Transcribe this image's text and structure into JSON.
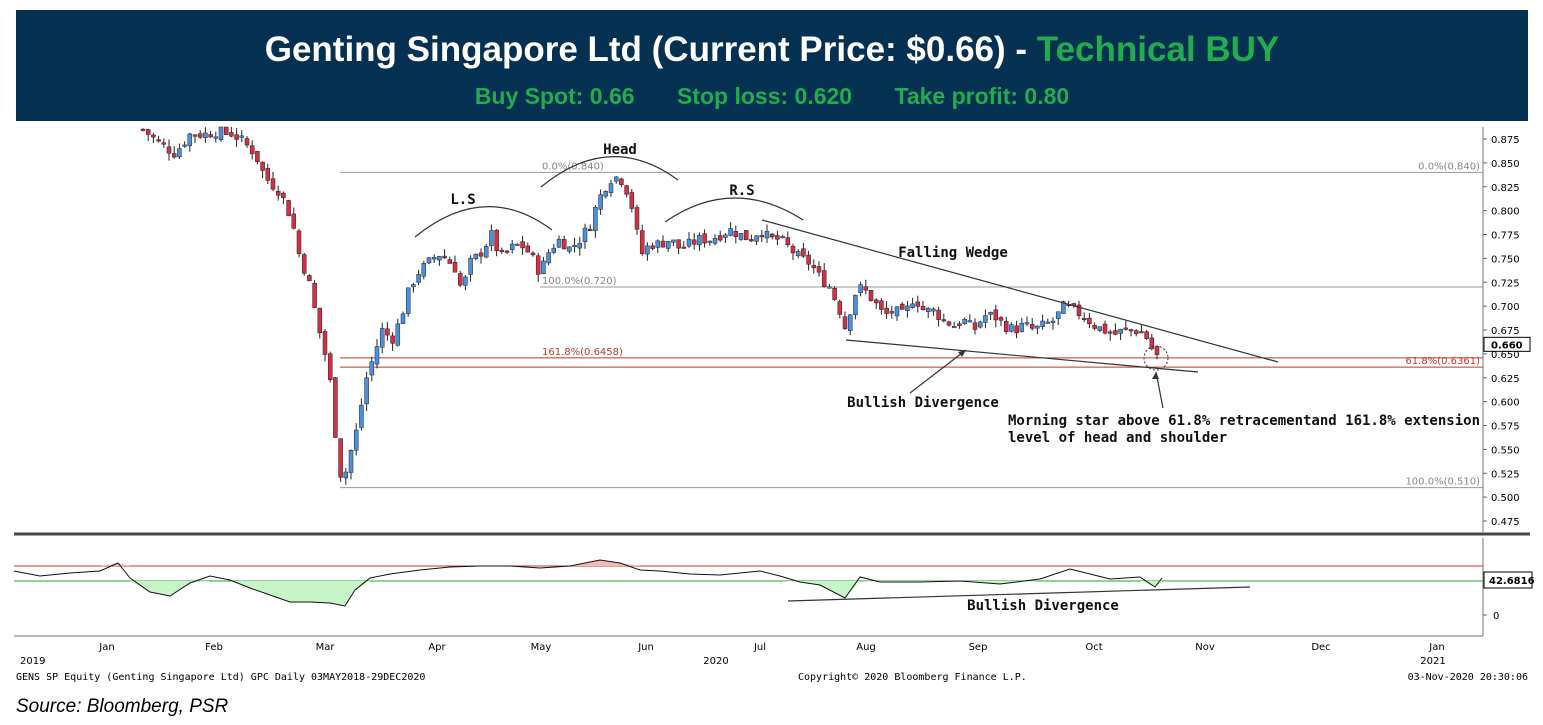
{
  "header": {
    "title_main": "Genting Singapore Ltd (Current Price: $0.66) - ",
    "title_signal": "Technical BUY",
    "buy_spot": "Buy Spot: 0.66",
    "stop_loss": "Stop loss: 0.620",
    "take_profit": "Take profit: 0.80"
  },
  "source": "Source: Bloomberg, PSR",
  "footer": {
    "left": "GENS SP Equity (Genting Singapore Ltd) GPC  Daily 03MAY2018-29DEC2020",
    "center": "Copyright© 2020 Bloomberg Finance L.P.",
    "right": "03-Nov-2020 20:30:06"
  },
  "colors": {
    "banner": "#043051",
    "buy_green": "#1fad4e",
    "up_candle": "#4a90e2",
    "down_candle": "#d32f45",
    "rsi_fill": "#c8f5c8",
    "rsi_over": "#f5b8b8"
  },
  "chart_data": {
    "type": "candlestick",
    "price_axis": {
      "min": 0.475,
      "max": 0.875,
      "ticks": [
        "0.875",
        "0.850",
        "0.825",
        "0.800",
        "0.775",
        "0.750",
        "0.725",
        "0.700",
        "0.675",
        "0.650",
        "0.625",
        "0.600",
        "0.575",
        "0.550",
        "0.525",
        "0.500",
        "0.475"
      ]
    },
    "current_price_label": "0.660",
    "rsi_axis": {
      "labels": [
        "42.6816",
        "0"
      ],
      "upper_band": 70,
      "lower_band": 30
    },
    "x_months": [
      "Jan",
      "Feb",
      "Mar",
      "Apr",
      "May",
      "Jun",
      "Jul",
      "Aug",
      "Sep",
      "Oct",
      "Nov",
      "Dec",
      "Jan"
    ],
    "x_years": [
      "2019",
      "2020",
      "2021"
    ],
    "levels": [
      {
        "label_left": "0.0%(0.840)",
        "label_right": "0.0%(0.840)",
        "value": 0.84,
        "color": "#999999"
      },
      {
        "label_left": "100.0%(0.720)",
        "value": 0.72,
        "color": "#999999"
      },
      {
        "label_left": "161.8%(0.6458)",
        "value": 0.6458,
        "color": "#c0392b"
      },
      {
        "label_right": "61.8%(0.6361)",
        "value": 0.6361,
        "color": "#c0392b"
      },
      {
        "label_right": "100.0%(0.510)",
        "value": 0.51,
        "color": "#999999"
      }
    ],
    "annotations": {
      "head": "Head",
      "left_shoulder": "L.S",
      "right_shoulder": "R.S",
      "falling_wedge": "Falling Wedge",
      "bullish_divergence": "Bullish Divergence",
      "morning_star_line1": "Morning star above 61.8% retracementand 161.8% extension",
      "morning_star_line2": "level of head and shoulder",
      "rsi_divergence": "Bullish Divergence"
    },
    "path": [
      [
        143,
        0.885
      ],
      [
        160,
        0.87
      ],
      [
        175,
        0.86
      ],
      [
        190,
        0.88
      ],
      [
        205,
        0.88
      ],
      [
        225,
        0.885
      ],
      [
        240,
        0.875
      ],
      [
        255,
        0.86
      ],
      [
        265,
        0.835
      ],
      [
        280,
        0.82
      ],
      [
        292,
        0.79
      ],
      [
        300,
        0.75
      ],
      [
        308,
        0.73
      ],
      [
        318,
        0.68
      ],
      [
        325,
        0.65
      ],
      [
        332,
        0.61
      ],
      [
        338,
        0.535
      ],
      [
        343,
        0.515
      ],
      [
        350,
        0.545
      ],
      [
        358,
        0.575
      ],
      [
        365,
        0.62
      ],
      [
        373,
        0.645
      ],
      [
        382,
        0.675
      ],
      [
        392,
        0.665
      ],
      [
        400,
        0.685
      ],
      [
        410,
        0.72
      ],
      [
        418,
        0.735
      ],
      [
        428,
        0.745
      ],
      [
        438,
        0.755
      ],
      [
        446,
        0.75
      ],
      [
        455,
        0.74
      ],
      [
        462,
        0.715
      ],
      [
        470,
        0.745
      ],
      [
        480,
        0.755
      ],
      [
        492,
        0.775
      ],
      [
        500,
        0.75
      ],
      [
        510,
        0.76
      ],
      [
        520,
        0.765
      ],
      [
        530,
        0.755
      ],
      [
        540,
        0.735
      ],
      [
        550,
        0.76
      ],
      [
        560,
        0.77
      ],
      [
        570,
        0.76
      ],
      [
        580,
        0.77
      ],
      [
        590,
        0.785
      ],
      [
        598,
        0.81
      ],
      [
        605,
        0.825
      ],
      [
        612,
        0.835
      ],
      [
        620,
        0.835
      ],
      [
        630,
        0.815
      ],
      [
        636,
        0.78
      ],
      [
        642,
        0.755
      ],
      [
        650,
        0.765
      ],
      [
        660,
        0.765
      ],
      [
        670,
        0.77
      ],
      [
        680,
        0.76
      ],
      [
        690,
        0.765
      ],
      [
        700,
        0.77
      ],
      [
        710,
        0.77
      ],
      [
        720,
        0.775
      ],
      [
        730,
        0.78
      ],
      [
        740,
        0.775
      ],
      [
        750,
        0.77
      ],
      [
        760,
        0.78
      ],
      [
        770,
        0.77
      ],
      [
        780,
        0.77
      ],
      [
        790,
        0.76
      ],
      [
        800,
        0.75
      ],
      [
        810,
        0.745
      ],
      [
        820,
        0.73
      ],
      [
        830,
        0.72
      ],
      [
        840,
        0.695
      ],
      [
        846,
        0.675
      ],
      [
        852,
        0.705
      ],
      [
        858,
        0.72
      ],
      [
        866,
        0.715
      ],
      [
        874,
        0.705
      ],
      [
        884,
        0.69
      ],
      [
        894,
        0.695
      ],
      [
        904,
        0.69
      ],
      [
        914,
        0.71
      ],
      [
        924,
        0.695
      ],
      [
        934,
        0.695
      ],
      [
        944,
        0.685
      ],
      [
        954,
        0.68
      ],
      [
        964,
        0.685
      ],
      [
        974,
        0.675
      ],
      [
        984,
        0.69
      ],
      [
        994,
        0.69
      ],
      [
        1004,
        0.68
      ],
      [
        1014,
        0.675
      ],
      [
        1024,
        0.68
      ],
      [
        1034,
        0.675
      ],
      [
        1044,
        0.68
      ],
      [
        1054,
        0.685
      ],
      [
        1064,
        0.7
      ],
      [
        1074,
        0.695
      ],
      [
        1084,
        0.69
      ],
      [
        1094,
        0.68
      ],
      [
        1104,
        0.675
      ],
      [
        1114,
        0.67
      ],
      [
        1124,
        0.675
      ],
      [
        1134,
        0.675
      ],
      [
        1144,
        0.672
      ],
      [
        1150,
        0.66
      ],
      [
        1156,
        0.645
      ],
      [
        1162,
        0.66
      ]
    ],
    "rsi_path": [
      [
        14,
        571
      ],
      [
        40,
        576
      ],
      [
        70,
        573
      ],
      [
        100,
        571
      ],
      [
        118,
        563
      ],
      [
        130,
        578
      ],
      [
        150,
        592
      ],
      [
        170,
        596
      ],
      [
        190,
        583
      ],
      [
        210,
        576
      ],
      [
        230,
        580
      ],
      [
        250,
        588
      ],
      [
        270,
        595
      ],
      [
        290,
        602
      ],
      [
        310,
        602
      ],
      [
        330,
        603
      ],
      [
        345,
        606
      ],
      [
        355,
        590
      ],
      [
        370,
        578
      ],
      [
        390,
        574
      ],
      [
        420,
        570
      ],
      [
        450,
        567
      ],
      [
        480,
        566
      ],
      [
        510,
        566
      ],
      [
        540,
        568
      ],
      [
        570,
        566
      ],
      [
        600,
        560
      ],
      [
        620,
        563
      ],
      [
        640,
        570
      ],
      [
        660,
        571
      ],
      [
        690,
        574
      ],
      [
        720,
        575
      ],
      [
        760,
        571
      ],
      [
        780,
        576
      ],
      [
        800,
        582
      ],
      [
        820,
        585
      ],
      [
        845,
        598
      ],
      [
        860,
        577
      ],
      [
        880,
        582
      ],
      [
        920,
        582
      ],
      [
        960,
        581
      ],
      [
        1000,
        584
      ],
      [
        1040,
        579
      ],
      [
        1070,
        569
      ],
      [
        1090,
        574
      ],
      [
        1110,
        579
      ],
      [
        1140,
        577
      ],
      [
        1155,
        587
      ],
      [
        1162,
        578
      ]
    ],
    "rsi_shaded_green": [
      [
        120,
        610
      ],
      [
        335,
        610
      ],
      [
        780,
        585
      ],
      [
        1150,
        585
      ]
    ],
    "rsi_shaded_red": [
      [
        585,
        620
      ]
    ]
  }
}
